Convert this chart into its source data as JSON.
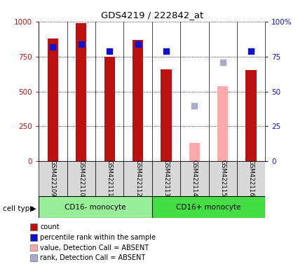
{
  "title": "GDS4219 / 222842_at",
  "samples": [
    "GSM422109",
    "GSM422110",
    "GSM422111",
    "GSM422112",
    "GSM422113",
    "GSM422114",
    "GSM422115",
    "GSM422116"
  ],
  "count_values": [
    880,
    990,
    750,
    870,
    660,
    null,
    null,
    655
  ],
  "count_absent_values": [
    null,
    null,
    null,
    null,
    null,
    130,
    540,
    null
  ],
  "percentile_values": [
    82,
    84,
    79,
    84,
    79,
    null,
    null,
    79
  ],
  "percentile_absent_values": [
    null,
    null,
    null,
    null,
    null,
    40,
    71,
    null
  ],
  "bar_color": "#bb1111",
  "bar_absent_color": "#ffaaaa",
  "dot_color": "#1111cc",
  "dot_absent_color": "#aaaacc",
  "cell_types": [
    {
      "label": "CD16- monocyte",
      "start": 0,
      "end": 4
    },
    {
      "label": "CD16+ monocyte",
      "start": 4,
      "end": 8
    }
  ],
  "cell_type_colors": [
    "#99ee99",
    "#44dd44"
  ],
  "ylim_left": [
    0,
    1000
  ],
  "ylim_right": [
    0,
    100
  ],
  "yticks_left": [
    0,
    250,
    500,
    750,
    1000
  ],
  "yticks_right": [
    0,
    25,
    50,
    75,
    100
  ],
  "legend_items": [
    {
      "label": "count",
      "color": "#bb1111"
    },
    {
      "label": "percentile rank within the sample",
      "color": "#1111cc"
    },
    {
      "label": "value, Detection Call = ABSENT",
      "color": "#ffaaaa"
    },
    {
      "label": "rank, Detection Call = ABSENT",
      "color": "#aaaacc"
    }
  ]
}
